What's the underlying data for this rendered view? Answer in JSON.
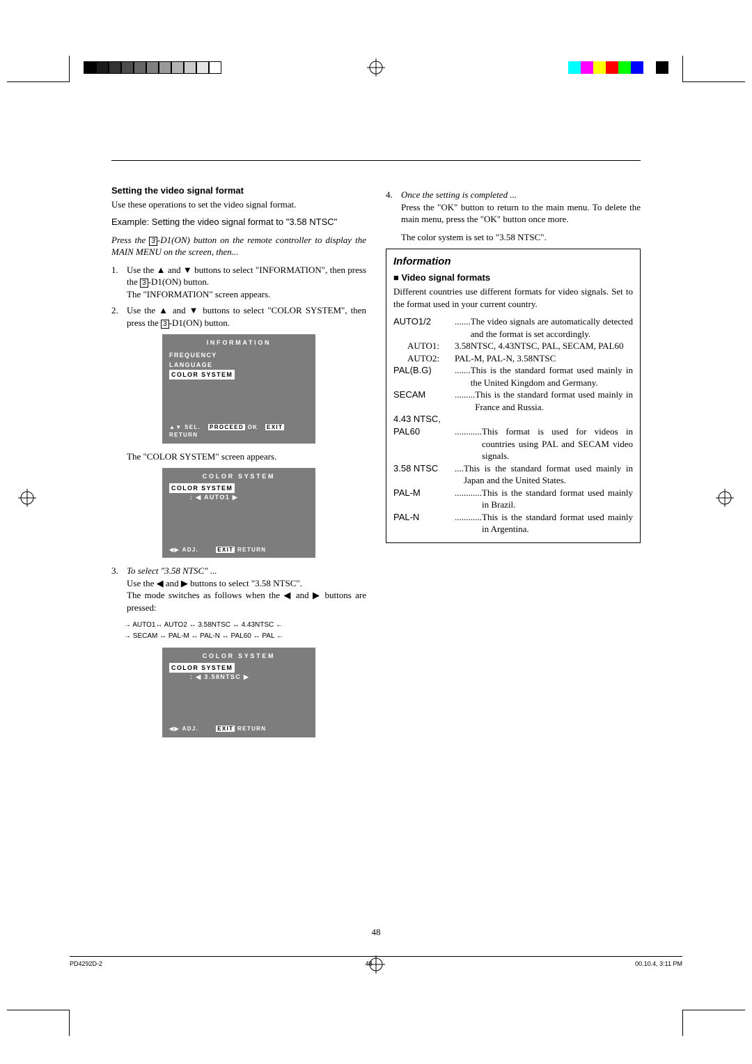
{
  "left": {
    "heading": "Setting the video signal format",
    "intro": "Use these operations to set the video signal format.",
    "example": "Example: Setting the video signal format to \"3.58 NTSC\"",
    "press": "Press the 3 -D1(ON) button on the remote controller to display the MAIN MENU on the screen, then...",
    "step1a": "Use the ▲ and ▼ buttons to select \"INFORMATION\", then press the ",
    "step1key": "3",
    "step1b": "-D1(ON) button.",
    "step1c": "The \"INFORMATION\" screen appears.",
    "step2a": "Use the ▲ and ▼ buttons to select \"COLOR SYSTEM\", then press the ",
    "step2key": "3",
    "step2b": "-D1(ON) button.",
    "after_osd1": "The \"COLOR SYSTEM\" screen appears.",
    "step3head": "To select \"3.58 NTSC\" ...",
    "step3a": "Use the ◀ and ▶ buttons to select \"3.58 NTSC\".",
    "step3b": "The mode switches as follows when the ◀ and ▶ buttons are pressed:",
    "chain1": "→ AUTO1↔ AUTO2 ↔ 3.58NTSC ↔ 4.43NTSC ←",
    "chain2": "→ SECAM ↔ PAL-M ↔ PAL-N ↔ PAL60 ↔ PAL ←",
    "osd1": {
      "title": "INFORMATION",
      "i1": "FREQUENCY",
      "i2": "LANGUAGE",
      "i3": "COLOR SYSTEM",
      "ft": "▲▼ SEL.    PROCEED OK   EXIT RETURN",
      "proc": "PROCEED",
      "exit": "EXIT"
    },
    "osd2": {
      "title": "COLOR SYSTEM",
      "i1": "COLOR SYSTEM",
      "val": ": ◀   AUTO1   ▶",
      "ft": "◀▶ ADJ.        EXIT RETURN",
      "exit": "EXIT"
    },
    "osd3": {
      "title": "COLOR SYSTEM",
      "i1": "COLOR SYSTEM",
      "val": ": ◀ 3.58NTSC ▶",
      "ft": "◀▶ ADJ.        EXIT RETURN",
      "exit": "EXIT"
    }
  },
  "right": {
    "step4head": "Once the setting is completed ...",
    "step4a": "Press the \"OK\" button to return to the main menu. To delete the main menu, press the \"OK\" button once more.",
    "step4b": "The color system is set to \"3.58 NTSC\".",
    "info_head": "Information",
    "info_sub": "Video signal formats",
    "info_intro": "Different countries use different formats for video signals. Set to the format used in your current country.",
    "defs": [
      {
        "term": "AUTO1/2",
        "dots": " ....... ",
        "desc": "The video signals are automatically detected and the format is set accordingly."
      },
      {
        "sub": true,
        "term": "AUTO1:",
        "desc": "3.58NTSC, 4.43NTSC, PAL, SECAM, PAL60"
      },
      {
        "sub": true,
        "term": "AUTO2:",
        "desc": "PAL-M, PAL-N, 3.58NTSC"
      },
      {
        "term": "PAL(B.G)",
        "dots": " ....... ",
        "desc": "This is the standard format used mainly in the United Kingdom and Germany."
      },
      {
        "term": "SECAM",
        "dots": " ......... ",
        "desc": "This is the standard format used mainly in France and Russia."
      },
      {
        "term": "4.43 NTSC,",
        "dots": "",
        "desc": ""
      },
      {
        "term": "PAL60",
        "dots": " ............ ",
        "desc": "This format is used for videos in countries using PAL and SECAM video signals."
      },
      {
        "term": "3.58 NTSC",
        "dots": " .... ",
        "desc": "This is the standard format used mainly in Japan and the United States."
      },
      {
        "term": "PAL-M",
        "dots": " ............ ",
        "desc": "This is the standard format used mainly in Brazil."
      },
      {
        "term": "PAL-N",
        "dots": " ............ ",
        "desc": "This is the standard format used mainly in Argentina."
      }
    ]
  },
  "page_number": "48",
  "foot": {
    "l": "PD4292D-2",
    "m": "48",
    "r": "00.10.4, 3:11 PM"
  },
  "grays": [
    "#000000",
    "#1a1a1a",
    "#333333",
    "#4d4d4d",
    "#666666",
    "#808080",
    "#999999",
    "#b3b3b3",
    "#cccccc",
    "#e6e6e6",
    "#ffffff"
  ],
  "colors": [
    "#00ffff",
    "#ff00ff",
    "#ffff00",
    "#ff0000",
    "#00ff00",
    "#0000ff",
    "#ffffff",
    "#000000"
  ]
}
